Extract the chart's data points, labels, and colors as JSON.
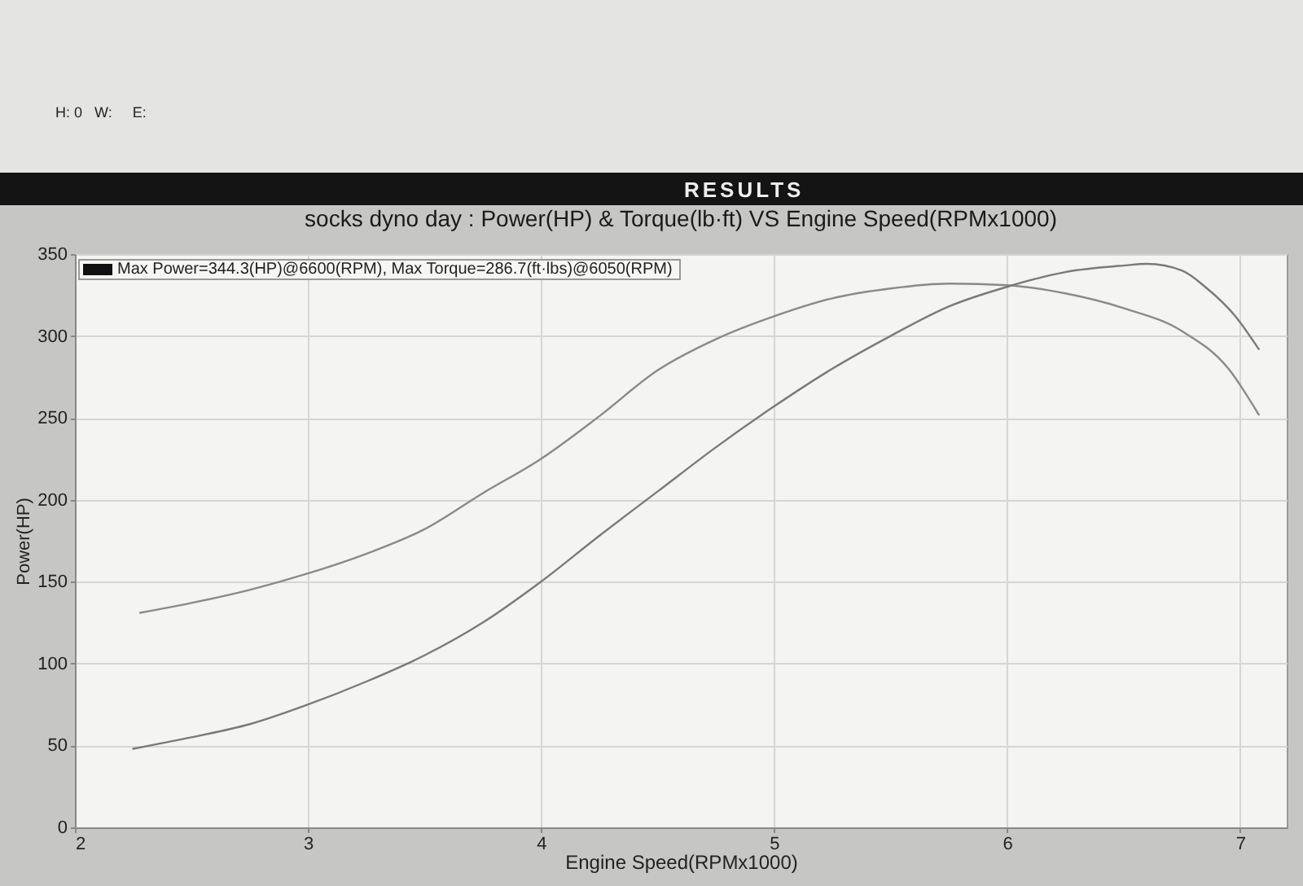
{
  "chart_data": {
    "type": "line",
    "title": "socks dyno day : Power(HP) & Torque(lb·ft) VS Engine Speed(RPMx1000)",
    "xlabel": "Engine Speed(RPMx1000)",
    "ylabel": "Power(HP)",
    "annotations": [
      "H: 0   W:     E:",
      "RESULTS",
      "Max Power=344.3(HP)@6600(RPM), Max Torque=286.7(ft·lbs)@6050(RPM)"
    ],
    "xlim": [
      2,
      7.2
    ],
    "xticks": [
      2,
      3,
      4,
      5,
      6,
      7
    ],
    "ylim": [
      0,
      350
    ],
    "yticks": [
      0,
      50,
      100,
      150,
      200,
      250,
      300,
      350
    ],
    "grid": true,
    "series": [
      {
        "color": "#8a8a8a",
        "x": [
          2.28,
          2.5,
          2.75,
          3.0,
          3.25,
          3.5,
          3.75,
          4.0,
          4.25,
          4.5,
          4.75,
          5.0,
          5.25,
          5.5,
          5.75,
          6.0,
          6.25,
          6.5,
          6.75,
          6.95,
          7.08
        ],
        "values": [
          131,
          137,
          145,
          155,
          167,
          182,
          204,
          225,
          251,
          279,
          298,
          312,
          323,
          329,
          332,
          331,
          326,
          317,
          303,
          280,
          252
        ]
      },
      {
        "color": "#7a7a7a",
        "x": [
          2.25,
          2.5,
          2.75,
          3.0,
          3.25,
          3.5,
          3.75,
          4.0,
          4.25,
          4.5,
          4.75,
          5.0,
          5.25,
          5.5,
          5.75,
          6.0,
          6.25,
          6.5,
          6.6,
          6.75,
          6.85,
          6.98,
          7.08
        ],
        "values": [
          48,
          55,
          63,
          75,
          89,
          105,
          125,
          150,
          178,
          205,
          232,
          257,
          280,
          300,
          318,
          330,
          339,
          343,
          344,
          340,
          330,
          312,
          292
        ]
      }
    ]
  }
}
